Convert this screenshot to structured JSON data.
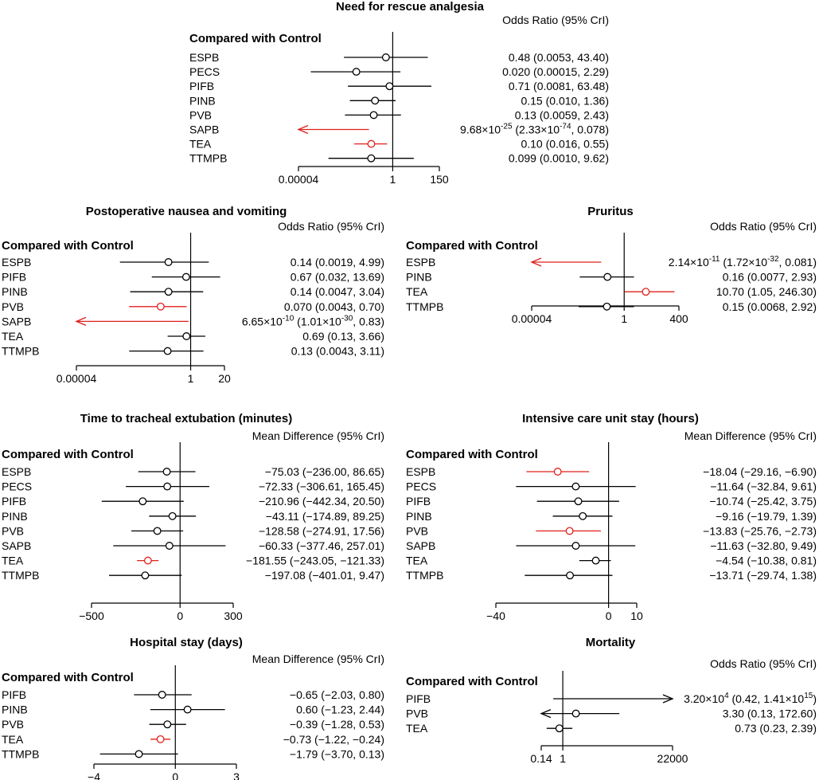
{
  "colors": {
    "significant": "#e0201b",
    "normal": "#000000"
  },
  "chart_data": [
    {
      "type": "forest",
      "title": "Need for rescue analgesia",
      "header": "Odds Ratio (95% CrI)",
      "group_label": "Compared with Control",
      "scale": "log",
      "xlim": [
        4e-05,
        150
      ],
      "ref_value": 1,
      "ticks": [
        {
          "value": 4e-05,
          "label": "0.00004"
        },
        {
          "value": 1,
          "label": "1"
        },
        {
          "value": 150,
          "label": "150"
        }
      ],
      "rows": [
        {
          "label": "ESPB",
          "estimate": 0.48,
          "lower": 0.0053,
          "upper": 43.4,
          "sig": false,
          "text": [
            "0.48 (0.0053, 43.40)"
          ]
        },
        {
          "label": "PECS",
          "estimate": 0.02,
          "lower": 0.00015,
          "upper": 2.29,
          "sig": false,
          "text": [
            "0.020 (0.00015, 2.29)"
          ]
        },
        {
          "label": "PIFB",
          "estimate": 0.71,
          "lower": 0.0081,
          "upper": 63.48,
          "sig": false,
          "text": [
            "0.71 (0.0081, 63.48)"
          ]
        },
        {
          "label": "PINB",
          "estimate": 0.15,
          "lower": 0.01,
          "upper": 1.36,
          "sig": false,
          "text": [
            "0.15 (0.010, 1.36)"
          ]
        },
        {
          "label": "PVB",
          "estimate": 0.13,
          "lower": 0.0059,
          "upper": 2.43,
          "sig": false,
          "text": [
            "0.13 (0.0059, 2.43)"
          ]
        },
        {
          "label": "SAPB",
          "estimate": 9.68e-25,
          "lower": 2.33e-74,
          "upper": 0.078,
          "sig": true,
          "arrow_left": true,
          "text": [
            "9.68×10",
            "-25",
            " (2.33×10",
            "-74",
            ", 0.078)"
          ]
        },
        {
          "label": "TEA",
          "estimate": 0.1,
          "lower": 0.016,
          "upper": 0.55,
          "sig": true,
          "text": [
            "0.10 (0.016, 0.55)"
          ]
        },
        {
          "label": "TTMPB",
          "estimate": 0.099,
          "lower": 0.001,
          "upper": 9.62,
          "sig": false,
          "text": [
            "0.099 (0.0010, 9.62)"
          ]
        }
      ]
    },
    {
      "type": "forest",
      "title": "Postoperative nausea and vomiting",
      "header": "Odds Ratio (95% CrI)",
      "group_label": "Compared with Control",
      "scale": "log",
      "xlim": [
        4e-05,
        20
      ],
      "ref_value": 1,
      "ticks": [
        {
          "value": 4e-05,
          "label": "0.00004"
        },
        {
          "value": 1,
          "label": "1"
        },
        {
          "value": 20,
          "label": "20"
        }
      ],
      "rows": [
        {
          "label": "ESPB",
          "estimate": 0.14,
          "lower": 0.0019,
          "upper": 4.99,
          "sig": false,
          "text": [
            "0.14 (0.0019, 4.99)"
          ]
        },
        {
          "label": "PIFB",
          "estimate": 0.67,
          "lower": 0.032,
          "upper": 13.69,
          "sig": false,
          "text": [
            "0.67 (0.032, 13.69)"
          ]
        },
        {
          "label": "PINB",
          "estimate": 0.14,
          "lower": 0.0047,
          "upper": 3.04,
          "sig": false,
          "text": [
            "0.14 (0.0047, 3.04)"
          ]
        },
        {
          "label": "PVB",
          "estimate": 0.07,
          "lower": 0.0043,
          "upper": 0.7,
          "sig": true,
          "text": [
            "0.070 (0.0043, 0.70)"
          ]
        },
        {
          "label": "SAPB",
          "estimate": 6.65e-10,
          "lower": 1.01e-30,
          "upper": 0.83,
          "sig": true,
          "arrow_left": true,
          "text": [
            "6.65×10",
            "-10",
            " (1.01×10",
            "-30",
            ", 0.83)"
          ]
        },
        {
          "label": "TEA",
          "estimate": 0.69,
          "lower": 0.13,
          "upper": 3.66,
          "sig": false,
          "text": [
            "0.69 (0.13, 3.66)"
          ]
        },
        {
          "label": "TTMPB",
          "estimate": 0.13,
          "lower": 0.0043,
          "upper": 3.11,
          "sig": false,
          "text": [
            "0.13 (0.0043, 3.11)"
          ]
        }
      ]
    },
    {
      "type": "forest",
      "title": "Pruritus",
      "header": "Odds Ratio (95% CrI)",
      "group_label": "Compared with Control",
      "scale": "log",
      "xlim": [
        4e-05,
        400
      ],
      "ref_value": 1,
      "ticks": [
        {
          "value": 4e-05,
          "label": "0.00004"
        },
        {
          "value": 1,
          "label": "1"
        },
        {
          "value": 400,
          "label": "400"
        }
      ],
      "rows": [
        {
          "label": "ESPB",
          "estimate": 2.14e-11,
          "lower": 1.72e-32,
          "upper": 0.081,
          "sig": true,
          "arrow_left": true,
          "text": [
            "2.14×10",
            "-11",
            " (1.72×10",
            "-32",
            ", 0.081)"
          ]
        },
        {
          "label": "PINB",
          "estimate": 0.16,
          "lower": 0.0077,
          "upper": 2.93,
          "sig": false,
          "text": [
            "0.16 (0.0077, 2.93)"
          ]
        },
        {
          "label": "TEA",
          "estimate": 10.7,
          "lower": 1.05,
          "upper": 246.3,
          "sig": true,
          "text": [
            "10.70 (1.05, 246.30)"
          ]
        },
        {
          "label": "TTMPB",
          "estimate": 0.15,
          "lower": 0.0068,
          "upper": 2.92,
          "sig": false,
          "text": [
            "0.15 (0.0068, 2.92)"
          ]
        }
      ]
    },
    {
      "type": "forest",
      "title": "Time to tracheal extubation (minutes)",
      "header": "Mean Difference (95% CrI)",
      "group_label": "Compared with Control",
      "scale": "linear",
      "xlim": [
        -500,
        300
      ],
      "ref_value": 0,
      "ticks": [
        {
          "value": -500,
          "label": "−500"
        },
        {
          "value": 0,
          "label": "0"
        },
        {
          "value": 300,
          "label": "300"
        }
      ],
      "rows": [
        {
          "label": "ESPB",
          "estimate": -75.03,
          "lower": -236.0,
          "upper": 86.65,
          "sig": false,
          "text": [
            "−75.03 (−236.00, 86.65)"
          ]
        },
        {
          "label": "PECS",
          "estimate": -72.33,
          "lower": -306.61,
          "upper": 165.45,
          "sig": false,
          "text": [
            "−72.33 (−306.61, 165.45)"
          ]
        },
        {
          "label": "PIFB",
          "estimate": -210.96,
          "lower": -442.34,
          "upper": 20.5,
          "sig": false,
          "text": [
            "−210.96 (−442.34, 20.50)"
          ]
        },
        {
          "label": "PINB",
          "estimate": -43.11,
          "lower": -174.89,
          "upper": 89.25,
          "sig": false,
          "text": [
            "−43.11 (−174.89, 89.25)"
          ]
        },
        {
          "label": "PVB",
          "estimate": -128.58,
          "lower": -274.91,
          "upper": 17.56,
          "sig": false,
          "text": [
            "−128.58 (−274.91, 17.56)"
          ]
        },
        {
          "label": "SAPB",
          "estimate": -60.33,
          "lower": -377.46,
          "upper": 257.01,
          "sig": false,
          "text": [
            "−60.33 (−377.46, 257.01)"
          ]
        },
        {
          "label": "TEA",
          "estimate": -181.55,
          "lower": -243.05,
          "upper": -121.33,
          "sig": true,
          "text": [
            "−181.55 (−243.05, −121.33)"
          ]
        },
        {
          "label": "TTMPB",
          "estimate": -197.08,
          "lower": -401.01,
          "upper": 9.47,
          "sig": false,
          "text": [
            "−197.08 (−401.01, 9.47)"
          ]
        }
      ]
    },
    {
      "type": "forest",
      "title": "Intensive care unit stay (hours)",
      "header": "Mean Difference (95% CrI)",
      "group_label": "Compared with Control",
      "scale": "linear",
      "xlim": [
        -40,
        10
      ],
      "ref_value": 0,
      "ticks": [
        {
          "value": -40,
          "label": "−40"
        },
        {
          "value": 0,
          "label": "0"
        },
        {
          "value": 10,
          "label": "10"
        }
      ],
      "rows": [
        {
          "label": "ESPB",
          "estimate": -18.04,
          "lower": -29.16,
          "upper": -6.9,
          "sig": true,
          "text": [
            "−18.04 (−29.16, −6.90)"
          ]
        },
        {
          "label": "PECS",
          "estimate": -11.64,
          "lower": -32.84,
          "upper": 9.61,
          "sig": false,
          "text": [
            "−11.64 (−32.84, 9.61)"
          ]
        },
        {
          "label": "PIFB",
          "estimate": -10.74,
          "lower": -25.42,
          "upper": 3.75,
          "sig": false,
          "text": [
            "−10.74 (−25.42, 3.75)"
          ]
        },
        {
          "label": "PINB",
          "estimate": -9.16,
          "lower": -19.79,
          "upper": 1.39,
          "sig": false,
          "text": [
            "−9.16 (−19.79, 1.39)"
          ]
        },
        {
          "label": "PVB",
          "estimate": -13.83,
          "lower": -25.76,
          "upper": -2.73,
          "sig": true,
          "text": [
            "−13.83 (−25.76, −2.73)"
          ]
        },
        {
          "label": "SAPB",
          "estimate": -11.63,
          "lower": -32.8,
          "upper": 9.49,
          "sig": false,
          "text": [
            "−11.63 (−32.80, 9.49)"
          ]
        },
        {
          "label": "TEA",
          "estimate": -4.54,
          "lower": -10.38,
          "upper": 0.81,
          "sig": false,
          "text": [
            "−4.54 (−10.38, 0.81)"
          ]
        },
        {
          "label": "TTMPB",
          "estimate": -13.71,
          "lower": -29.74,
          "upper": 1.38,
          "sig": false,
          "text": [
            "−13.71 (−29.74, 1.38)"
          ]
        }
      ]
    },
    {
      "type": "forest",
      "title": "Hospital stay (days)",
      "header": "Mean Difference (95% CrI)",
      "group_label": "Compared with Control",
      "scale": "linear",
      "xlim": [
        -4,
        3
      ],
      "ref_value": 0,
      "ticks": [
        {
          "value": -4,
          "label": "−4"
        },
        {
          "value": 0,
          "label": "0"
        },
        {
          "value": 3,
          "label": "3"
        }
      ],
      "rows": [
        {
          "label": "PIFB",
          "estimate": -0.65,
          "lower": -2.03,
          "upper": 0.8,
          "sig": false,
          "text": [
            "−0.65 (−2.03, 0.80)"
          ]
        },
        {
          "label": "PINB",
          "estimate": 0.6,
          "lower": -1.23,
          "upper": 2.44,
          "sig": false,
          "text": [
            "0.60 (−1.23, 2.44)"
          ]
        },
        {
          "label": "PVB",
          "estimate": -0.39,
          "lower": -1.28,
          "upper": 0.53,
          "sig": false,
          "text": [
            "−0.39 (−1.28, 0.53)"
          ]
        },
        {
          "label": "TEA",
          "estimate": -0.73,
          "lower": -1.22,
          "upper": -0.24,
          "sig": true,
          "text": [
            "−0.73 (−1.22, −0.24)"
          ]
        },
        {
          "label": "TTMPB",
          "estimate": -1.79,
          "lower": -3.7,
          "upper": 0.13,
          "sig": false,
          "text": [
            "−1.79 (−3.70, 0.13)"
          ]
        }
      ]
    },
    {
      "type": "forest",
      "title": "Mortality",
      "header": "Odds Ratio (95% CrI)",
      "group_label": "Compared with Control",
      "scale": "log",
      "xlim": [
        0.14,
        22000
      ],
      "ref_value": 1,
      "ticks": [
        {
          "value": 0.14,
          "label": "0.14"
        },
        {
          "value": 1,
          "label": "1"
        },
        {
          "value": 22000,
          "label": "22000"
        }
      ],
      "rows": [
        {
          "label": "PIFB",
          "estimate": 32000,
          "lower": 0.42,
          "upper": 1410000000000000.0,
          "sig": false,
          "arrow_right": true,
          "text": [
            "3.20×10",
            "4",
            " (0.42, 1.41×10",
            "15",
            ")"
          ]
        },
        {
          "label": "PVB",
          "estimate": 3.3,
          "lower": 0.13,
          "upper": 172.6,
          "sig": false,
          "arrow_left": true,
          "text": [
            "3.30 (0.13, 172.60)"
          ]
        },
        {
          "label": "TEA",
          "estimate": 0.73,
          "lower": 0.23,
          "upper": 2.39,
          "sig": false,
          "text": [
            "0.73 (0.23, 2.39)"
          ]
        }
      ]
    }
  ]
}
